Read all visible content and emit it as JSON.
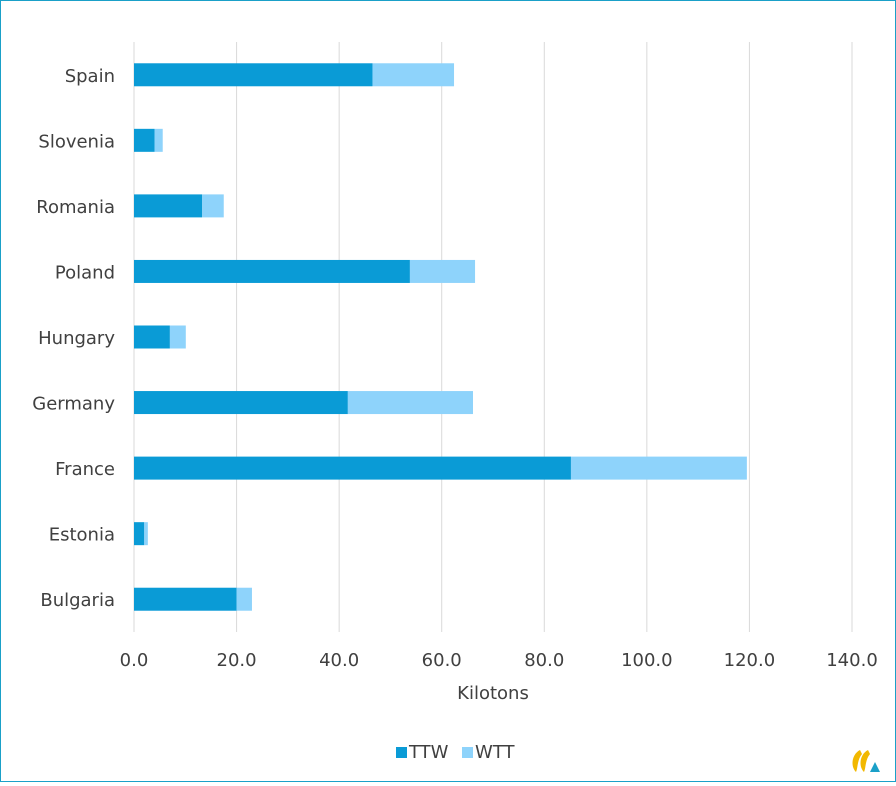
{
  "chart_data": {
    "type": "bar",
    "orientation": "horizontal",
    "stacked": true,
    "categories": [
      "Spain",
      "Slovenia",
      "Romania",
      "Poland",
      "Hungary",
      "Germany",
      "France",
      "Estonia",
      "Bulgaria"
    ],
    "series": [
      {
        "name": "TTW",
        "color": "#0a9bd6",
        "values": [
          46.5,
          4.0,
          13.3,
          53.8,
          7.0,
          41.7,
          85.2,
          2.0,
          20.0
        ]
      },
      {
        "name": "WTT",
        "color": "#8ed3fb",
        "values": [
          15.9,
          1.6,
          4.2,
          12.7,
          3.1,
          24.4,
          34.3,
          0.7,
          3.0
        ]
      }
    ],
    "xlabel": "Kilotons",
    "xlim": [
      0,
      140
    ],
    "xticks": [
      "0.0",
      "20.0",
      "40.0",
      "60.0",
      "80.0",
      "100.0",
      "120.0",
      "140.0"
    ],
    "grid": true,
    "legend": "bottom"
  }
}
